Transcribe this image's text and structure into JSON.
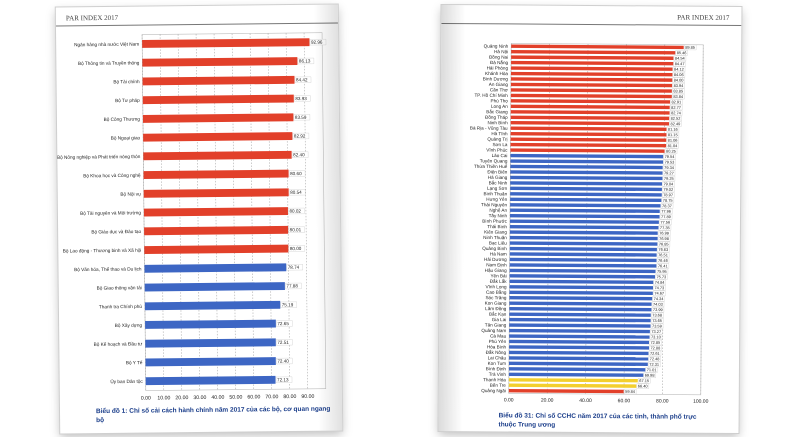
{
  "book_header": "PAR INDEX 2017",
  "left_caption": "Biểu đồ 1: Chỉ số cải cách hành chính năm 2017 của các bộ, cơ quan ngang bộ",
  "right_caption": "Biểu đồ 31: Chỉ số CCHC năm 2017 của các tỉnh, thành phố trực thuộc Trung ương",
  "colors": {
    "red": "#e2402a",
    "blue": "#3d66c4",
    "yellow": "#f3cf2e"
  },
  "chart_data": [
    {
      "type": "bar",
      "orientation": "horizontal",
      "categories": [
        "Ngân hàng nhà nước Việt Nam",
        "Bộ Thông tin và Truyền thông",
        "Bộ Tài chính",
        "Bộ Tư pháp",
        "Bộ Công Thương",
        "Bộ Ngoại giao",
        "Bộ Nông nghiệp và Phát triển nông thôn",
        "Bộ Khoa học và Công nghệ",
        "Bộ Nội vụ",
        "Bộ Tài nguyên và Môi trường",
        "Bộ Giáo dục và Đào tạo",
        "Bộ Lao động - Thương binh và Xã hội",
        "Bộ Văn hóa, Thể thao và Du lịch",
        "Bộ Giao thông vận tải",
        "Thanh tra Chính phủ",
        "Bộ Xây dựng",
        "Bộ Kế hoạch và Đầu tư",
        "Bộ Y Tế",
        "Ủy ban Dân tộc"
      ],
      "values": [
        92.96,
        86.13,
        84.42,
        83.93,
        83.59,
        82.92,
        82.4,
        80.6,
        80.54,
        80.02,
        80.01,
        80.0,
        78.74,
        77.88,
        75.19,
        72.65,
        72.51,
        72.4,
        72.13
      ],
      "value_labels": [
        "92.96",
        "86.13",
        "84.42",
        "83.93",
        "83.59",
        "82.92",
        "82.40",
        "80.60",
        "80.54",
        "80.02",
        "80.01",
        "80.00",
        "78.74",
        "77.88",
        "75.19",
        "72.65",
        "72.51",
        "72.40",
        "72.13"
      ],
      "colors": [
        "red",
        "red",
        "red",
        "red",
        "red",
        "red",
        "red",
        "red",
        "red",
        "red",
        "red",
        "red",
        "blue",
        "blue",
        "blue",
        "blue",
        "blue",
        "blue",
        "blue"
      ],
      "xlim": [
        0,
        100
      ],
      "xticks": [
        "0.00",
        "10.00",
        "20.00",
        "30.00",
        "40.00",
        "50.00",
        "60.00",
        "70.00",
        "80.00",
        "90.00"
      ]
    },
    {
      "type": "bar",
      "orientation": "horizontal",
      "categories": [
        "Quảng Ninh",
        "Hà Nội",
        "Đồng Nai",
        "Đà Nẵng",
        "Hải Phòng",
        "Khánh Hòa",
        "Bình Dương",
        "An Giang",
        "Cần Thơ",
        "TP. Hồ Chí Minh",
        "Phú Thọ",
        "Long An",
        "Bắc Giang",
        "Đồng Tháp",
        "Ninh Bình",
        "Bà Rịa - Vũng Tàu",
        "Hà Tĩnh",
        "Quảng Trị",
        "Sơn La",
        "Vĩnh Phúc",
        "Lào Cai",
        "Tuyên Quang",
        "Thừa Thiên Huế",
        "Điện Biên",
        "Hà Giang",
        "Bắc Ninh",
        "Lạng Sơn",
        "Bình Thuận",
        "Hưng Yên",
        "Thái Nguyên",
        "Nghệ An",
        "Tây Ninh",
        "Bình Phước",
        "Thái Bình",
        "Kiên Giang",
        "Ninh Thuận",
        "Bạc Liêu",
        "Quảng Bình",
        "Hà Nam",
        "Hải Dương",
        "Nam Định",
        "Hậu Giang",
        "Yên Bái",
        "Đắk Lắk",
        "Vĩnh Long",
        "Cao Bằng",
        "Sóc Trăng",
        "Kon Giang",
        "Lâm Đồng",
        "Bắc Kạn",
        "Gia Lai",
        "Tân Giang",
        "Quảng Nam",
        "Cà Mau",
        "Phú Yên",
        "Hòa Bình",
        "Đắk Nông",
        "Lai Châu",
        "Kon Tum",
        "Bình Định",
        "Trà Vinh",
        "Thanh Hóa",
        "Bến Tre",
        "Quảng Ngãi"
      ],
      "values": [
        89.85,
        85.46,
        84.54,
        84.47,
        84.12,
        84.06,
        84.0,
        83.94,
        83.85,
        83.84,
        82.91,
        82.77,
        82.74,
        82.52,
        82.49,
        81.16,
        81.15,
        81.06,
        81.04,
        80.25,
        79.54,
        79.53,
        79.34,
        79.27,
        79.25,
        79.04,
        79.02,
        78.97,
        78.75,
        78.37,
        77.96,
        77.89,
        77.56,
        77.35,
        76.99,
        76.98,
        76.85,
        76.63,
        76.51,
        76.46,
        76.41,
        75.95,
        75.73,
        74.84,
        74.73,
        74.67,
        74.34,
        74.03,
        73.99,
        73.68,
        73.65,
        73.59,
        73.27,
        73.1,
        72.85,
        72.88,
        72.61,
        72.48,
        72.31,
        71.01,
        69.98,
        67.15,
        66.4,
        59.84
      ],
      "value_labels": [
        "89.85",
        "85.46",
        "84.54",
        "84.47",
        "84.12",
        "84.06",
        "84.00",
        "83.94",
        "83.85",
        "83.84",
        "82.91",
        "82.77",
        "82.74",
        "82.52",
        "82.49",
        "81.16",
        "81.15",
        "81.06",
        "81.04",
        "80.25",
        "79.54",
        "79.53",
        "79.34",
        "79.27",
        "79.25",
        "79.04",
        "79.02",
        "78.97",
        "78.75",
        "78.37",
        "77.96",
        "77.89",
        "77.56",
        "77.35",
        "76.99",
        "76.98",
        "76.85",
        "76.63",
        "76.51",
        "76.46",
        "76.41",
        "75.95",
        "75.73",
        "74.84",
        "74.73",
        "74.67",
        "74.34",
        "74.03",
        "73.99",
        "73.68",
        "73.65",
        "73.59",
        "73.27",
        "73.10",
        "72.85",
        "72.88",
        "72.61",
        "72.48",
        "72.31",
        "71.01",
        "69.98",
        "67.15",
        "66.40",
        "59.84"
      ],
      "colors": [
        "red",
        "red",
        "red",
        "red",
        "red",
        "red",
        "red",
        "red",
        "red",
        "red",
        "red",
        "red",
        "red",
        "red",
        "red",
        "red",
        "red",
        "red",
        "red",
        "red",
        "blue",
        "blue",
        "blue",
        "blue",
        "blue",
        "blue",
        "blue",
        "blue",
        "blue",
        "blue",
        "blue",
        "blue",
        "blue",
        "blue",
        "blue",
        "blue",
        "blue",
        "blue",
        "blue",
        "blue",
        "blue",
        "blue",
        "blue",
        "blue",
        "blue",
        "blue",
        "blue",
        "blue",
        "blue",
        "blue",
        "blue",
        "blue",
        "blue",
        "blue",
        "blue",
        "blue",
        "blue",
        "blue",
        "blue",
        "blue",
        "blue",
        "yellow",
        "yellow",
        "red"
      ],
      "xlim": [
        0,
        100
      ],
      "xticks": [
        "0.00",
        "20.00",
        "40.00",
        "60.00",
        "80.00",
        "100.00"
      ]
    }
  ]
}
